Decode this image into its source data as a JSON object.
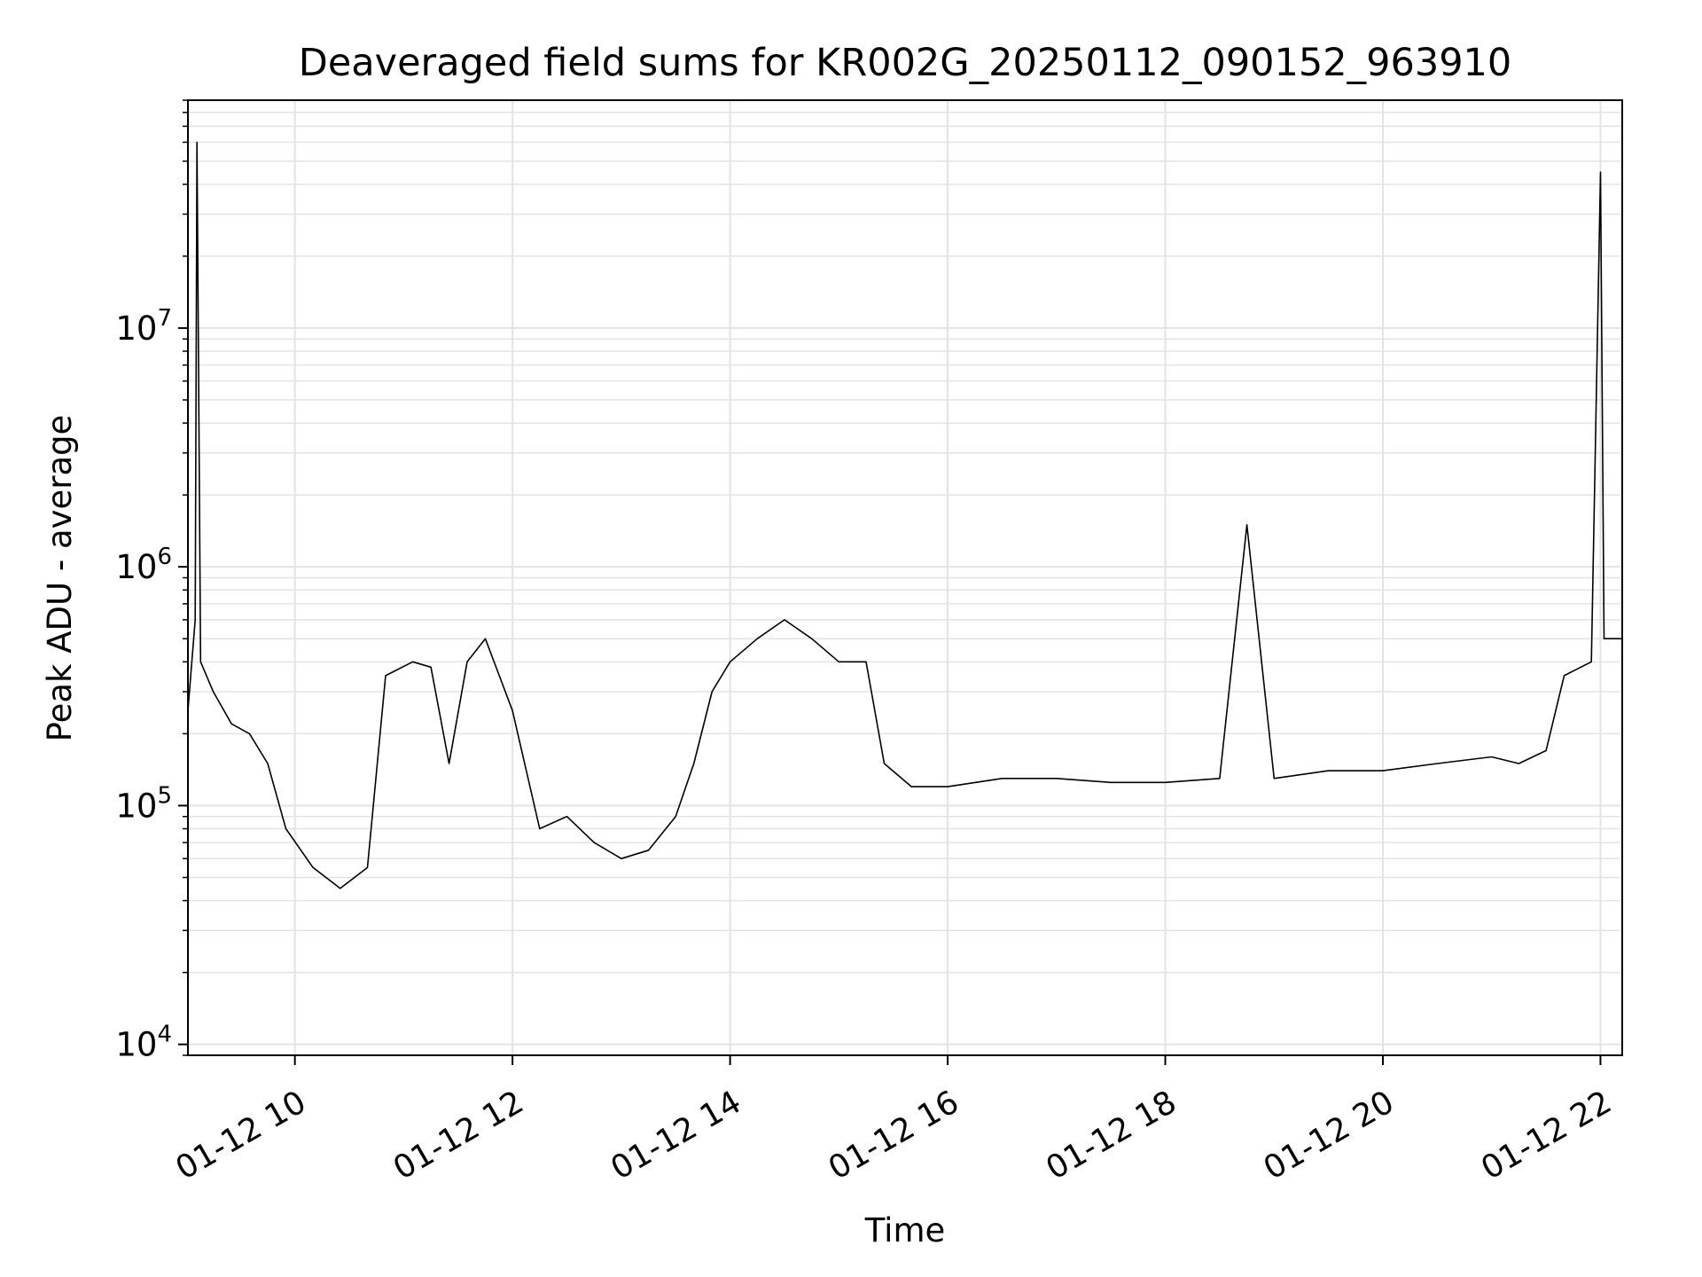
{
  "chart_data": {
    "type": "line",
    "title": "Deaveraged field sums for KR002G_20250112_090152_963910",
    "xlabel": "Time",
    "ylabel": "Peak ADU - average",
    "yscale": "log",
    "xlim": [
      "01-12 09:01",
      "01-12 22:12"
    ],
    "ylim": [
      9000,
      90000000
    ],
    "grid": true,
    "line_color": "#000000",
    "x_ticks": [
      {
        "label": "01-12 10",
        "value": "01-12 10:00"
      },
      {
        "label": "01-12 12",
        "value": "01-12 12:00"
      },
      {
        "label": "01-12 14",
        "value": "01-12 14:00"
      },
      {
        "label": "01-12 16",
        "value": "01-12 16:00"
      },
      {
        "label": "01-12 18",
        "value": "01-12 18:00"
      },
      {
        "label": "01-12 20",
        "value": "01-12 20:00"
      },
      {
        "label": "01-12 22",
        "value": "01-12 22:00"
      }
    ],
    "y_ticks": [
      {
        "base": "10",
        "exp": "4",
        "value": 10000
      },
      {
        "base": "10",
        "exp": "5",
        "value": 100000
      },
      {
        "base": "10",
        "exp": "6",
        "value": 1000000
      },
      {
        "base": "10",
        "exp": "7",
        "value": 10000000
      }
    ],
    "series": [
      {
        "points": [
          [
            "01-12 09:01",
            250000
          ],
          [
            "01-12 09:05",
            600000
          ],
          [
            "01-12 09:06",
            60000000
          ],
          [
            "01-12 09:08",
            400000
          ],
          [
            "01-12 09:15",
            300000
          ],
          [
            "01-12 09:25",
            220000
          ],
          [
            "01-12 09:35",
            200000
          ],
          [
            "01-12 09:45",
            150000
          ],
          [
            "01-12 09:55",
            80000
          ],
          [
            "01-12 10:10",
            55000
          ],
          [
            "01-12 10:25",
            45000
          ],
          [
            "01-12 10:40",
            55000
          ],
          [
            "01-12 10:50",
            350000
          ],
          [
            "01-12 11:05",
            400000
          ],
          [
            "01-12 11:15",
            380000
          ],
          [
            "01-12 11:25",
            150000
          ],
          [
            "01-12 11:35",
            400000
          ],
          [
            "01-12 11:45",
            500000
          ],
          [
            "01-12 12:00",
            250000
          ],
          [
            "01-12 12:15",
            80000
          ],
          [
            "01-12 12:30",
            90000
          ],
          [
            "01-12 12:45",
            70000
          ],
          [
            "01-12 13:00",
            60000
          ],
          [
            "01-12 13:15",
            65000
          ],
          [
            "01-12 13:30",
            90000
          ],
          [
            "01-12 13:40",
            150000
          ],
          [
            "01-12 13:50",
            300000
          ],
          [
            "01-12 14:00",
            400000
          ],
          [
            "01-12 14:15",
            500000
          ],
          [
            "01-12 14:30",
            600000
          ],
          [
            "01-12 14:45",
            500000
          ],
          [
            "01-12 15:00",
            400000
          ],
          [
            "01-12 15:15",
            400000
          ],
          [
            "01-12 15:25",
            150000
          ],
          [
            "01-12 15:40",
            120000
          ],
          [
            "01-12 16:00",
            120000
          ],
          [
            "01-12 16:30",
            130000
          ],
          [
            "01-12 17:00",
            130000
          ],
          [
            "01-12 17:30",
            125000
          ],
          [
            "01-12 18:00",
            125000
          ],
          [
            "01-12 18:30",
            130000
          ],
          [
            "01-12 18:45",
            1500000
          ],
          [
            "01-12 19:00",
            130000
          ],
          [
            "01-12 19:30",
            140000
          ],
          [
            "01-12 20:00",
            140000
          ],
          [
            "01-12 20:30",
            150000
          ],
          [
            "01-12 21:00",
            160000
          ],
          [
            "01-12 21:15",
            150000
          ],
          [
            "01-12 21:30",
            170000
          ],
          [
            "01-12 21:40",
            350000
          ],
          [
            "01-12 21:55",
            400000
          ],
          [
            "01-12 22:00",
            45000000
          ],
          [
            "01-12 22:02",
            500000
          ],
          [
            "01-12 22:12",
            500000
          ]
        ]
      }
    ]
  }
}
